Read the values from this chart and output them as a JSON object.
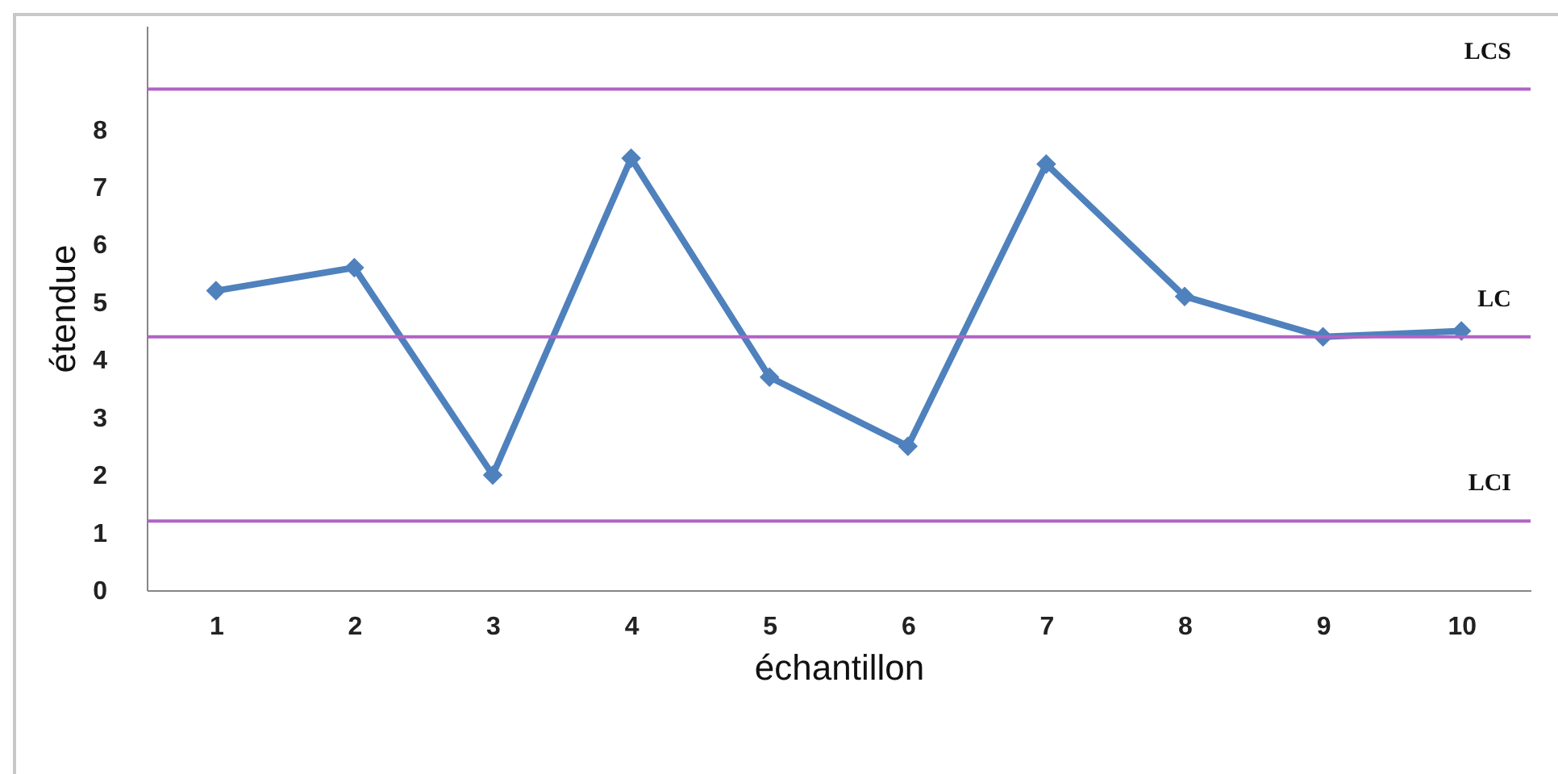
{
  "chart_data": {
    "type": "line",
    "xlabel": "échantillon",
    "ylabel": "étendue",
    "categories": [
      "1",
      "2",
      "3",
      "4",
      "5",
      "6",
      "7",
      "8",
      "9",
      "10"
    ],
    "series": [
      {
        "color": "#4f81bd",
        "values": [
          5.2,
          5.6,
          2.0,
          7.5,
          3.7,
          2.5,
          7.4,
          5.1,
          4.4,
          4.5
        ]
      }
    ],
    "ylim": [
      0,
      9.8
    ],
    "yticks": [
      0,
      1,
      2,
      3,
      4,
      5,
      6,
      7,
      8
    ],
    "grid": false,
    "marker": "diamond",
    "line_style": "solid",
    "ref_lines": [
      {
        "axis": "y",
        "value": 8.7,
        "label": "LCS",
        "color": "#b163c6"
      },
      {
        "axis": "y",
        "value": 4.4,
        "label": "LC",
        "color": "#b163c6"
      },
      {
        "axis": "y",
        "value": 1.2,
        "label": "LCI",
        "color": "#b163c6"
      }
    ]
  }
}
